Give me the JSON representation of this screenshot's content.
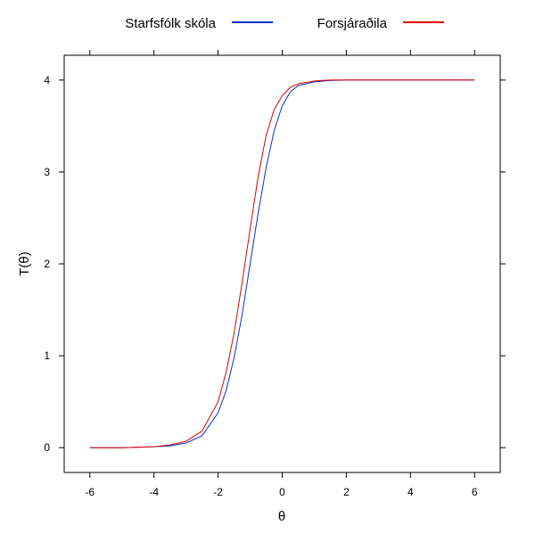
{
  "chart_data": {
    "type": "line",
    "title": "",
    "xlabel": "θ",
    "ylabel": "T(θ)",
    "xlim": [
      -6.8,
      6.8
    ],
    "ylim": [
      -0.27,
      4.27
    ],
    "x_ticks": [
      -6,
      -4,
      -2,
      0,
      2,
      4,
      6
    ],
    "y_ticks": [
      0,
      1,
      2,
      3,
      4
    ],
    "x_tick_labels": [
      "-6",
      "-4",
      "-2",
      "0",
      "2",
      "4",
      "6"
    ],
    "y_tick_labels": [
      "0",
      "1",
      "2",
      "3",
      "4"
    ],
    "grid": false,
    "legend_position": "top",
    "x": [
      -6,
      -5,
      -4,
      -3.5,
      -3,
      -2.5,
      -2,
      -1.75,
      -1.5,
      -1.25,
      -1,
      -0.75,
      -0.5,
      -0.25,
      0,
      0.25,
      0.5,
      1,
      1.5,
      2,
      3,
      4,
      5,
      6
    ],
    "series": [
      {
        "name": "Starfsfólk skóla",
        "color": "#0033cc",
        "values": [
          0.0,
          0.0,
          0.01,
          0.02,
          0.05,
          0.13,
          0.38,
          0.62,
          0.98,
          1.45,
          2.0,
          2.55,
          3.05,
          3.45,
          3.72,
          3.87,
          3.94,
          3.98,
          3.995,
          4.0,
          4.0,
          4.0,
          4.0,
          4.0
        ]
      },
      {
        "name": "Forsjáraðila",
        "color": "#dd0000",
        "values": [
          0.0,
          0.0,
          0.01,
          0.03,
          0.07,
          0.18,
          0.5,
          0.82,
          1.25,
          1.8,
          2.38,
          2.95,
          3.4,
          3.68,
          3.83,
          3.92,
          3.96,
          3.99,
          4.0,
          4.0,
          4.0,
          4.0,
          4.0,
          4.0
        ]
      }
    ]
  }
}
